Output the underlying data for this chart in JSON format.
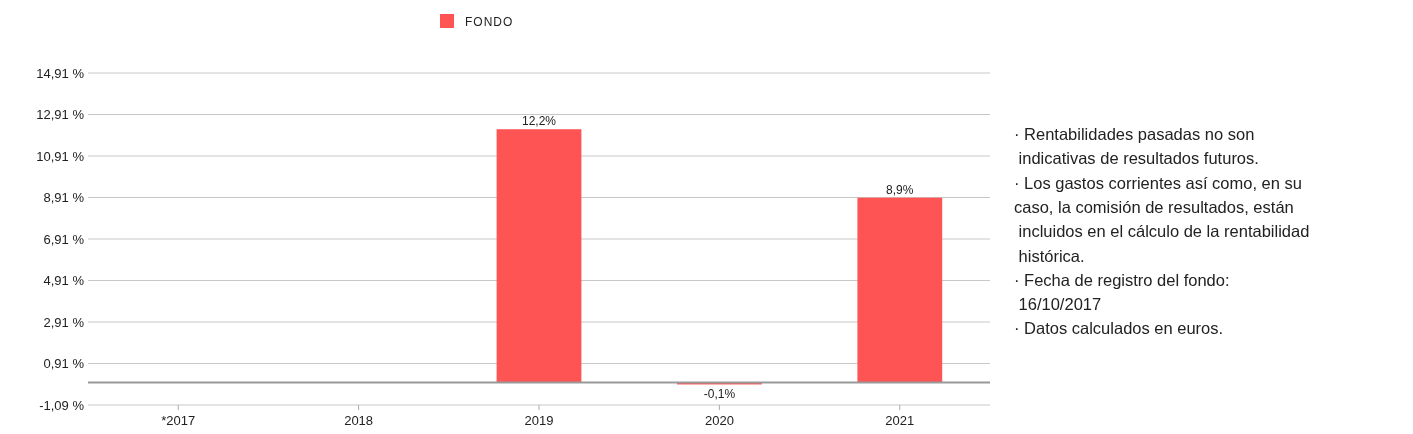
{
  "chart_data": {
    "type": "bar",
    "categories": [
      "*2017",
      "2018",
      "2019",
      "2020",
      "2021"
    ],
    "series": [
      {
        "name": "FONDO",
        "color": "#ff5454",
        "values": [
          null,
          null,
          12.2,
          -0.1,
          8.9
        ],
        "value_labels": [
          null,
          null,
          "12,2%",
          "-0,1%",
          "8,9%"
        ]
      }
    ],
    "ylim": [
      -1.09,
      14.91
    ],
    "yticks": [
      {
        "value": -1.09,
        "label": "-1,09 %"
      },
      {
        "value": 0.91,
        "label": "0,91 %"
      },
      {
        "value": 2.91,
        "label": "2,91 %"
      },
      {
        "value": 4.91,
        "label": "4,91 %"
      },
      {
        "value": 6.91,
        "label": "6,91 %"
      },
      {
        "value": 8.91,
        "label": "8,91 %"
      },
      {
        "value": 10.91,
        "label": "10,91 %"
      },
      {
        "value": 12.91,
        "label": "12,91 %"
      },
      {
        "value": 14.91,
        "label": "14,91 %"
      }
    ],
    "grid": "y",
    "legend": "top",
    "annotations": [
      "· Rentabilidades pasadas no son",
      " indicativas de resultados futuros.",
      "· Los gastos corrientes así como, en su",
      "caso, la comisión de resultados, están",
      " incluidos en el cálculo de la rentabilidad",
      " histórica.",
      "· Fecha de registro del fondo:",
      " 16/10/2017",
      "· Datos calculados en euros."
    ]
  }
}
